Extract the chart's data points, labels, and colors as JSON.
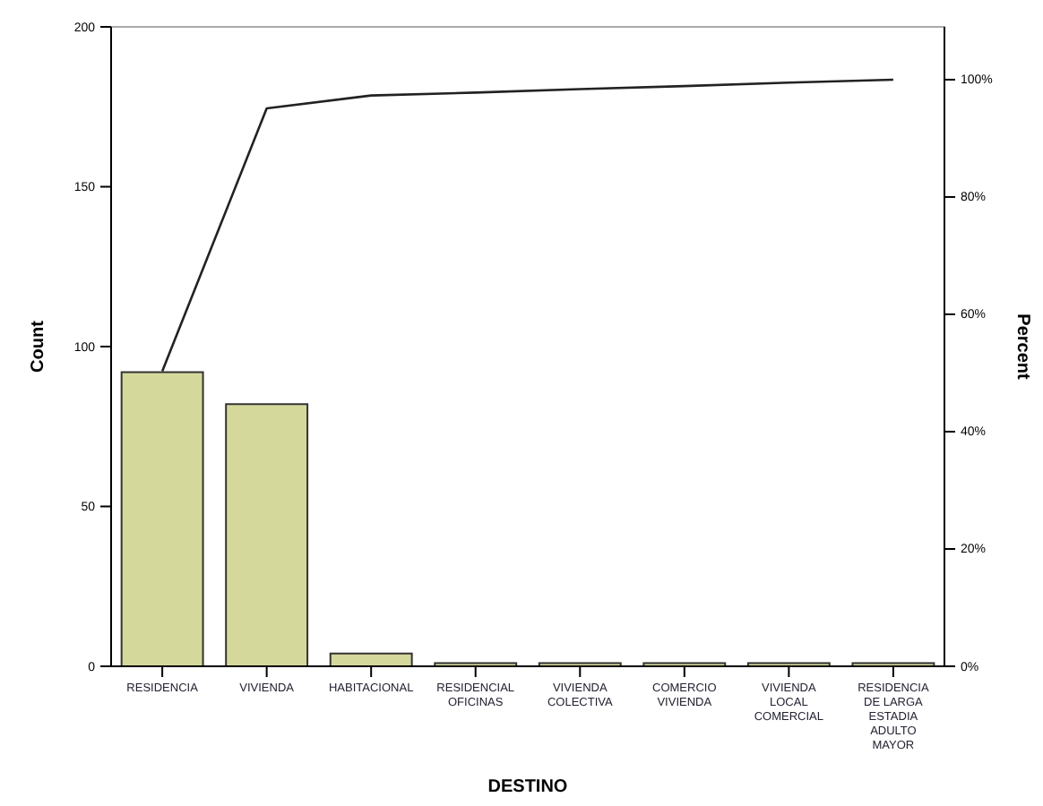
{
  "chart_data": {
    "type": "bar",
    "xlabel": "DESTINO",
    "ylabel": "Count",
    "y2label": "Percent",
    "categories": [
      "RESIDENCIA",
      "VIVIENDA",
      "HABITACIONAL",
      "RESIDENCIAL OFICINAS",
      "VIVIENDA COLECTIVA",
      "COMERCIO VIVIENDA",
      "VIVIENDA LOCAL COMERCIAL",
      "RESIDENCIA DE LARGA ESTADIA ADULTO MAYOR"
    ],
    "series": [
      {
        "color": "#d5d89b",
        "values": [
          92,
          82,
          4,
          1,
          1,
          1,
          1,
          1
        ]
      },
      {
        "type": "line",
        "axis": "y2",
        "color": "#222222",
        "values": [
          50.3,
          95.1,
          97.3,
          97.8,
          98.4,
          98.9,
          99.5,
          100
        ]
      }
    ],
    "ylim": [
      0,
      200
    ],
    "yticks": [
      0,
      50,
      100,
      150,
      200
    ],
    "y2lim": [
      0,
      109
    ],
    "y2ticks": [
      {
        "value": 0,
        "label": "0%"
      },
      {
        "value": 20,
        "label": "20%"
      },
      {
        "value": 40,
        "label": "40%"
      },
      {
        "value": 60,
        "label": "60%"
      },
      {
        "value": 80,
        "label": "80%"
      },
      {
        "value": 100,
        "label": "100%"
      }
    ],
    "grid": false,
    "marker": "none",
    "line_style": "solid"
  }
}
